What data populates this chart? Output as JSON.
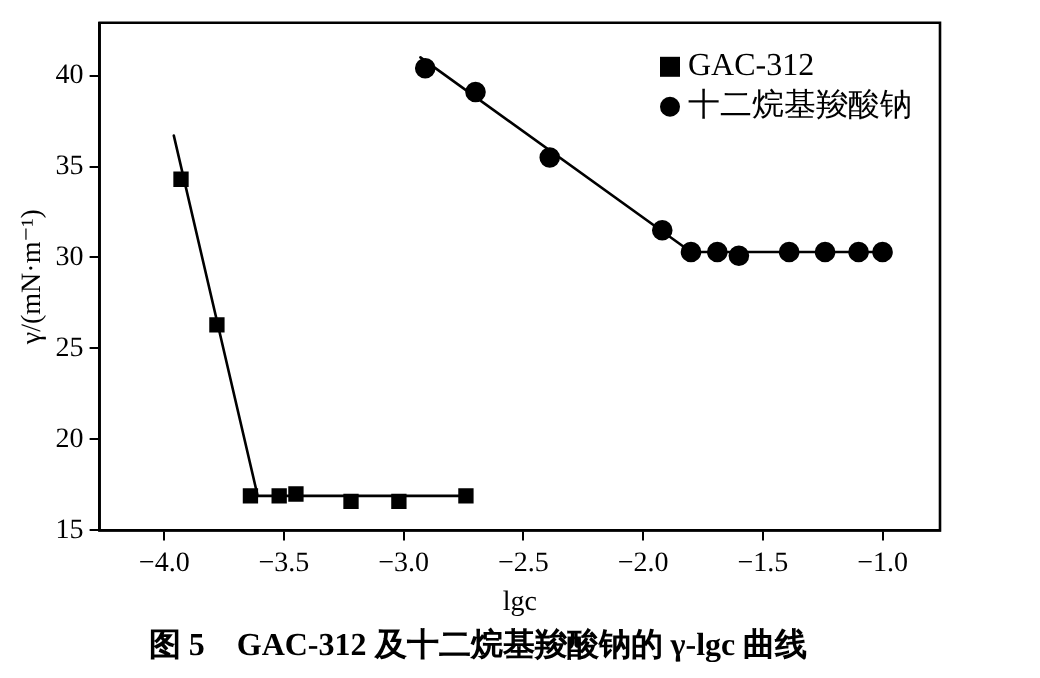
{
  "chart_data": {
    "type": "scatter",
    "title": "图 5　GAC-312 及十二烷基羧酸钠的 γ-lgc 曲线",
    "xlabel": "lgc",
    "ylabel": "γ/(mN·m⁻¹)",
    "xlim": [
      -4.27,
      -0.76
    ],
    "xticks": [
      {
        "value": -4,
        "label": "−4.0"
      },
      {
        "value": -3.5,
        "label": "−3.5"
      },
      {
        "value": -3,
        "label": "−3.0"
      },
      {
        "value": -2.5,
        "label": "−2.5"
      },
      {
        "value": -2,
        "label": "−2.0"
      },
      {
        "value": -1.5,
        "label": "−1.5"
      },
      {
        "value": -1,
        "label": "−1.0"
      }
    ],
    "ylim": [
      15,
      42.9
    ],
    "yticks": [
      15,
      20,
      25,
      30,
      35,
      40
    ],
    "grid": false,
    "legend": "top right",
    "series": [
      {
        "name": "GAC-312",
        "color": "#000000",
        "marker": "square",
        "x": [
          -3.93,
          -3.78,
          -3.64,
          -3.52,
          -3.45,
          -3.22,
          -3.02,
          -2.74
        ],
        "values": [
          34.3,
          26.3,
          16.9,
          16.9,
          17.0,
          16.6,
          16.6,
          16.9
        ]
      },
      {
        "name": "十二烷基羧酸钠",
        "color": "#000000",
        "marker": "circle",
        "x": [
          -2.91,
          -2.7,
          -2.39,
          -1.92,
          -1.8,
          -1.69,
          -1.6,
          -1.39,
          -1.24,
          -1.1,
          -1.0
        ],
        "values": [
          40.4,
          39.1,
          35.5,
          31.5,
          30.3,
          30.3,
          30.1,
          30.3,
          30.3,
          30.3,
          30.3
        ]
      },
      {
        "type": "line",
        "color": "#000000",
        "marker": "none",
        "x": [
          -3.96,
          -3.61,
          -2.74
        ],
        "values": [
          36.7,
          16.9,
          16.9
        ]
      },
      {
        "type": "line",
        "color": "#000000",
        "marker": "none",
        "x": [
          -2.93,
          -1.8,
          -1.0
        ],
        "values": [
          41.0,
          30.3,
          30.3
        ]
      }
    ]
  }
}
